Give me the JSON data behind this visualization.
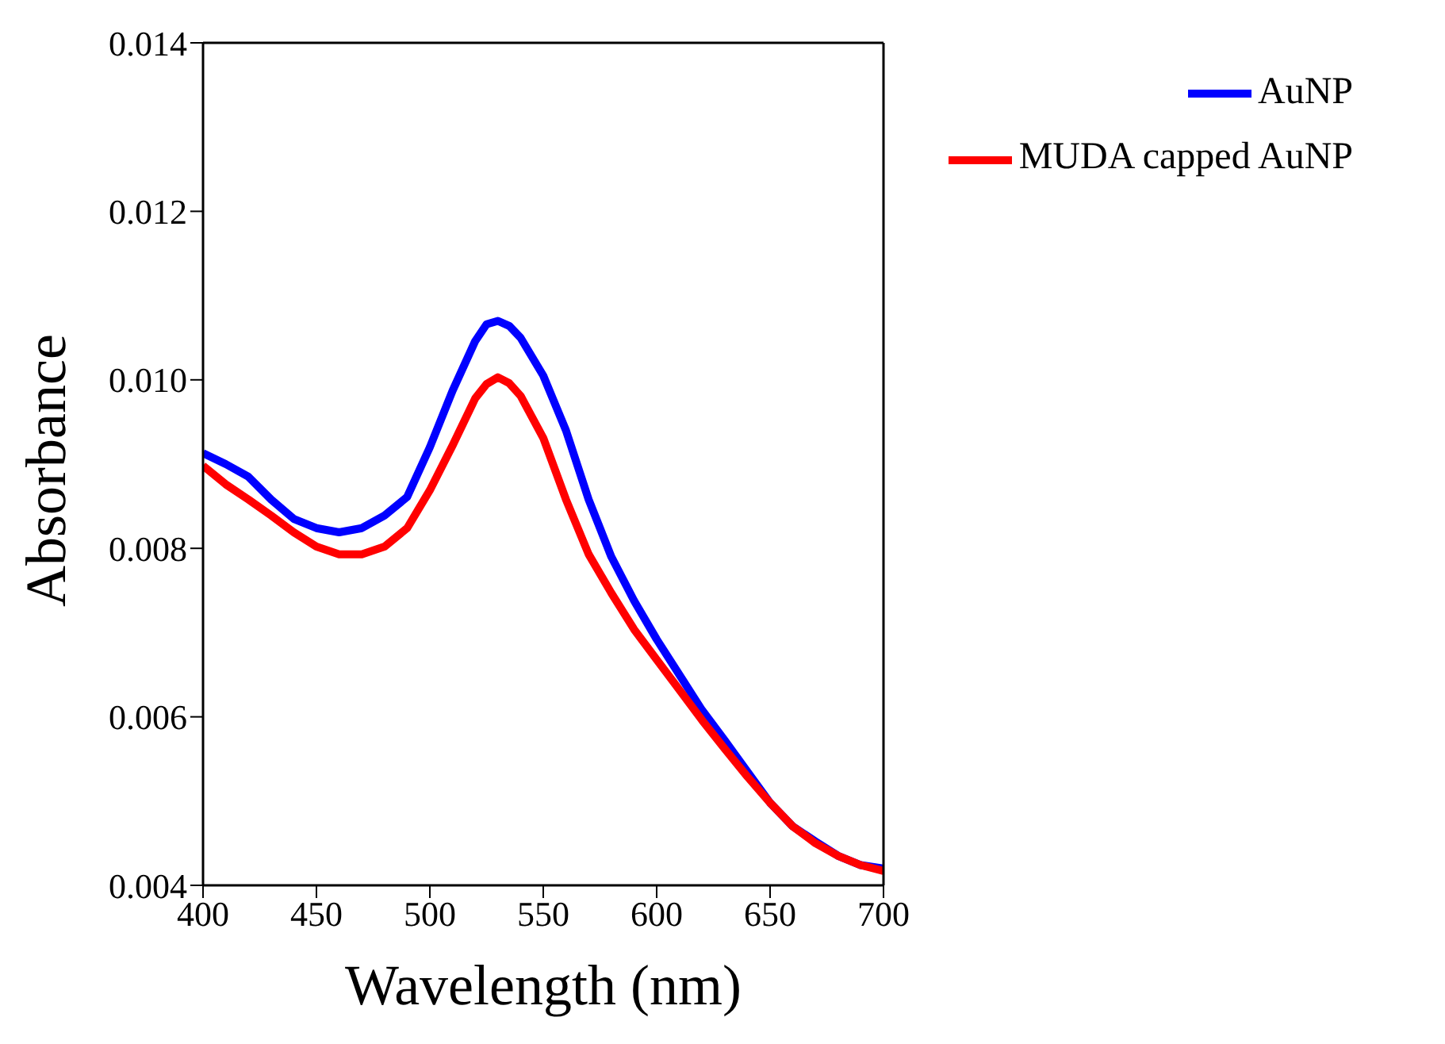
{
  "chart_data": {
    "type": "line",
    "xlabel": "Wavelength (nm)",
    "ylabel": "Absorbance",
    "x": [
      400,
      410,
      420,
      430,
      440,
      450,
      460,
      470,
      480,
      490,
      500,
      510,
      520,
      525,
      530,
      535,
      540,
      550,
      560,
      570,
      580,
      590,
      600,
      610,
      620,
      630,
      640,
      650,
      660,
      670,
      680,
      690,
      700
    ],
    "series": [
      {
        "name": "AuNP",
        "color": "#0000ff",
        "values": [
          0.00913,
          0.009,
          0.00885,
          0.00858,
          0.00835,
          0.00824,
          0.00819,
          0.00824,
          0.00839,
          0.00861,
          0.0092,
          0.00987,
          0.01046,
          0.01066,
          0.0107,
          0.01064,
          0.0105,
          0.01005,
          0.0094,
          0.00858,
          0.0079,
          0.00738,
          0.00692,
          0.0065,
          0.00608,
          0.00572,
          0.00535,
          0.00498,
          0.0047,
          0.00452,
          0.00435,
          0.00424,
          0.0042
        ]
      },
      {
        "name": "MUDA capped AuNP",
        "color": "#ff0000",
        "values": [
          0.00898,
          0.00876,
          0.00858,
          0.00839,
          0.00819,
          0.00802,
          0.00793,
          0.00793,
          0.00802,
          0.00824,
          0.00869,
          0.00922,
          0.00978,
          0.00995,
          0.01003,
          0.00996,
          0.00981,
          0.00931,
          0.00858,
          0.00793,
          0.00747,
          0.00704,
          0.00668,
          0.00632,
          0.00596,
          0.00562,
          0.00529,
          0.00498,
          0.0047,
          0.0045,
          0.00435,
          0.00424,
          0.00417
        ]
      }
    ],
    "xlim": [
      400,
      700
    ],
    "xticks": [
      400,
      450,
      500,
      550,
      600,
      650,
      700
    ],
    "ylim": [
      0.004,
      0.014
    ],
    "yticks": [
      {
        "value": 0.004,
        "label": "0.004"
      },
      {
        "value": 0.006,
        "label": "0.006"
      },
      {
        "value": 0.008,
        "label": "0.008"
      },
      {
        "value": 0.01,
        "label": "0.010"
      },
      {
        "value": 0.012,
        "label": "0.012"
      },
      {
        "value": 0.014,
        "label": "0.014"
      }
    ],
    "legend": "top right",
    "grid": false,
    "marker": "none",
    "line_style": "solid"
  }
}
